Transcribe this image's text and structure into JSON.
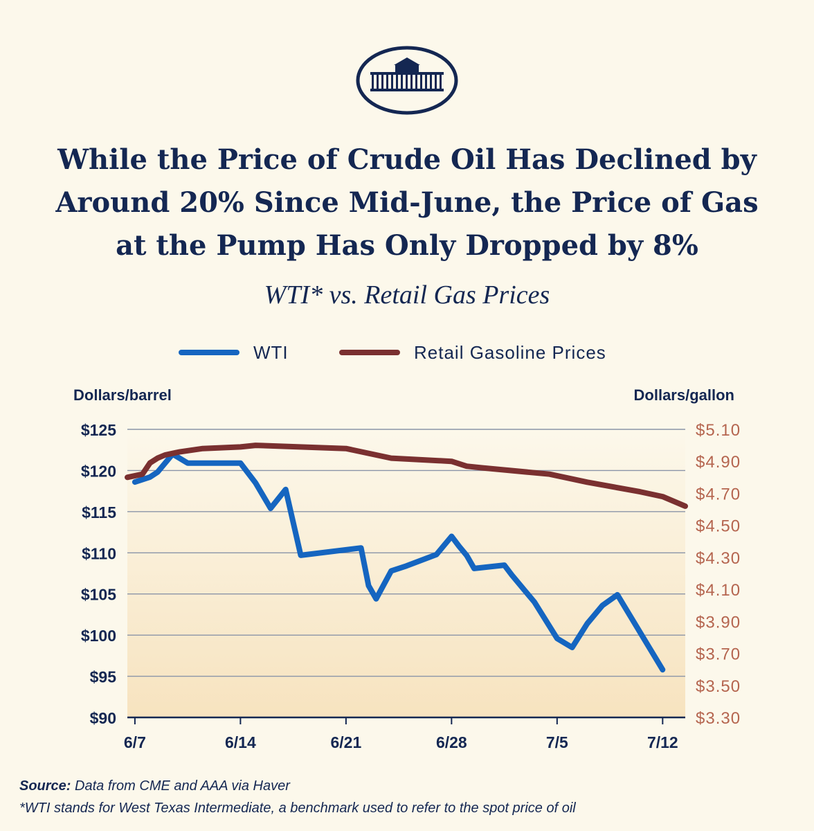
{
  "header": {
    "title_lines": [
      "While the Price of Crude Oil Has Declined by",
      "Around 20% Since Mid-June, the Price of Gas",
      "at the Pump Has Only Dropped by 8%"
    ],
    "subtitle": "WTI* vs. Retail Gas Prices"
  },
  "footer": {
    "source_label": "Source:",
    "source_text": "Data from CME and AAA via Haver",
    "note": "*WTI stands for West Texas Intermediate, a benchmark used to refer to the spot price of oil"
  },
  "colors": {
    "background": "#fcf8eb",
    "navy": "#142752",
    "wti": "#1565c0",
    "gas": "#7a3030",
    "right_axis": "#b5654f",
    "grid": "#8a94a8"
  },
  "chart_data": {
    "type": "line",
    "title": "WTI* vs. Retail Gas Prices",
    "x_ticks": [
      "6/7",
      "6/14",
      "6/21",
      "6/28",
      "7/5",
      "7/12"
    ],
    "x_tick_day_index": [
      0,
      7,
      14,
      21,
      28,
      35
    ],
    "x_range_day_index": [
      -0.5,
      36.5
    ],
    "left_axis": {
      "label": "Dollars/barrel",
      "ylim": [
        90,
        125
      ],
      "ticks": [
        125,
        120,
        115,
        110,
        105,
        100,
        95,
        90
      ],
      "tick_labels": [
        "$125",
        "$120",
        "$115",
        "$110",
        "$105",
        "$100",
        "$95",
        "$90"
      ]
    },
    "right_axis": {
      "label": "Dollars/gallon",
      "ylim": [
        3.3,
        5.1
      ],
      "ticks": [
        5.1,
        4.9,
        4.7,
        4.5,
        4.3,
        4.1,
        3.9,
        3.7,
        3.5,
        3.3
      ],
      "tick_labels": [
        "$5.10",
        "$4.90",
        "$4.70",
        "$4.50",
        "$4.30",
        "$4.10",
        "$3.90",
        "$3.70",
        "$3.50",
        "$3.30"
      ]
    },
    "grid": true,
    "legend": "top-center",
    "series": [
      {
        "name": "WTI",
        "axis": "left",
        "x": [
          0,
          1,
          1.5,
          2.5,
          3.5,
          4.5,
          7,
          8,
          9,
          10,
          11,
          15,
          15.5,
          16,
          17,
          18,
          20,
          21,
          21.5,
          22,
          22.5,
          24.5,
          25,
          26.5,
          28,
          29,
          30,
          31,
          32,
          35
        ],
        "values": [
          118.6,
          119.2,
          119.8,
          122.0,
          120.9,
          120.9,
          120.9,
          118.5,
          115.4,
          117.7,
          109.7,
          110.6,
          106.0,
          104.4,
          107.8,
          108.4,
          109.8,
          112.0,
          110.8,
          109.7,
          108.1,
          108.5,
          107.3,
          104.0,
          99.6,
          98.5,
          101.4,
          103.6,
          104.9,
          95.8
        ]
      },
      {
        "name": "Retail Gasoline Prices",
        "axis": "right",
        "x": [
          -0.5,
          0.5,
          1,
          1.5,
          2,
          2.5,
          3,
          4.5,
          7,
          8,
          14,
          17,
          21,
          22,
          23,
          27.5,
          30,
          33.5,
          35,
          36.5
        ],
        "values": [
          4.8,
          4.82,
          4.89,
          4.92,
          4.94,
          4.95,
          4.96,
          4.98,
          4.99,
          5.0,
          4.98,
          4.92,
          4.9,
          4.87,
          4.86,
          4.82,
          4.77,
          4.71,
          4.68,
          4.62
        ]
      }
    ]
  }
}
